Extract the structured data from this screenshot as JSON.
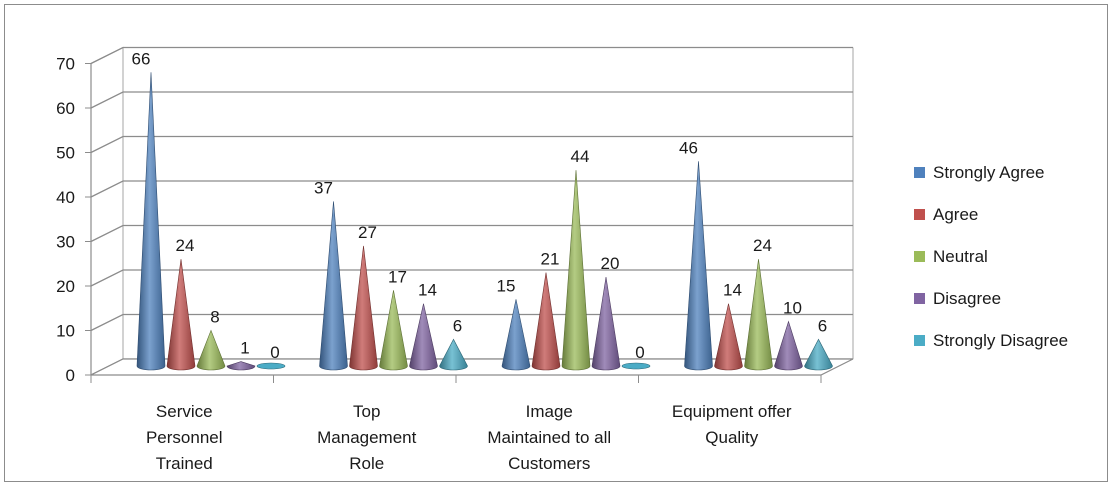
{
  "chart_data": {
    "type": "bar",
    "style": "3d-cone",
    "title": "",
    "xlabel": "",
    "ylabel": "",
    "ylim": [
      0,
      70
    ],
    "yticks": [
      "0",
      "10",
      "20",
      "30",
      "40",
      "50",
      "60",
      "70"
    ],
    "categories": [
      "Service Personnel Trained",
      "Top Management Role",
      "Image Maintained to all Customers",
      "Equipment offer Quality"
    ],
    "category_label_lines": [
      [
        "Service",
        "Personnel",
        "Trained"
      ],
      [
        "Top",
        "Management",
        "Role"
      ],
      [
        "Image",
        "Maintained to all",
        "Customers"
      ],
      [
        "Equipment offer",
        "Quality"
      ]
    ],
    "series": [
      {
        "name": "Strongly Agree",
        "color": "#4f81bd",
        "values": [
          66,
          37,
          15,
          46
        ]
      },
      {
        "name": "Agree",
        "color": "#c0504d",
        "values": [
          24,
          27,
          21,
          14
        ]
      },
      {
        "name": "Neutral",
        "color": "#9bbb59",
        "values": [
          8,
          17,
          44,
          24
        ]
      },
      {
        "name": "Disagree",
        "color": "#8064a2",
        "values": [
          1,
          14,
          20,
          10
        ]
      },
      {
        "name": "Strongly Disagree",
        "color": "#4bacc6",
        "values": [
          0,
          6,
          0,
          6
        ]
      }
    ],
    "grid": true,
    "legend_position": "right"
  }
}
